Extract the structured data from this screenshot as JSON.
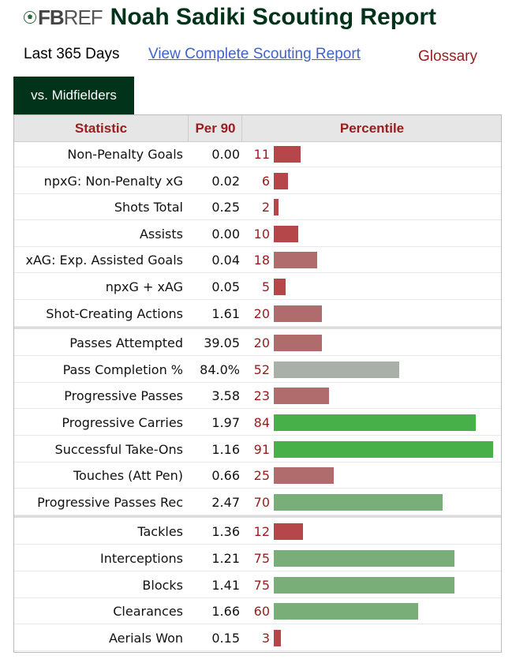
{
  "header": {
    "logo_fb": "FB",
    "logo_ref": "REF",
    "title": "Noah Sadiki Scouting Report"
  },
  "nav": {
    "period": "Last 365 Days",
    "complete_link": "View Complete Scouting Report",
    "glossary": "Glossary"
  },
  "tab": {
    "label": "vs. Midfielders"
  },
  "table": {
    "headers": {
      "statistic": "Statistic",
      "per90": "Per 90",
      "percentile": "Percentile"
    },
    "groups": [
      [
        {
          "stat": "Non-Penalty Goals",
          "per90": "0.00",
          "percentile": 11
        },
        {
          "stat": "npxG: Non-Penalty xG",
          "per90": "0.02",
          "percentile": 6
        },
        {
          "stat": "Shots Total",
          "per90": "0.25",
          "percentile": 2
        },
        {
          "stat": "Assists",
          "per90": "0.00",
          "percentile": 10
        },
        {
          "stat": "xAG: Exp. Assisted Goals",
          "per90": "0.04",
          "percentile": 18
        },
        {
          "stat": "npxG + xAG",
          "per90": "0.05",
          "percentile": 5
        },
        {
          "stat": "Shot-Creating Actions",
          "per90": "1.61",
          "percentile": 20
        }
      ],
      [
        {
          "stat": "Passes Attempted",
          "per90": "39.05",
          "percentile": 20
        },
        {
          "stat": "Pass Completion %",
          "per90": "84.0%",
          "percentile": 52
        },
        {
          "stat": "Progressive Passes",
          "per90": "3.58",
          "percentile": 23
        },
        {
          "stat": "Progressive Carries",
          "per90": "1.97",
          "percentile": 84
        },
        {
          "stat": "Successful Take-Ons",
          "per90": "1.16",
          "percentile": 91
        },
        {
          "stat": "Touches (Att Pen)",
          "per90": "0.66",
          "percentile": 25
        },
        {
          "stat": "Progressive Passes Rec",
          "per90": "2.47",
          "percentile": 70
        }
      ],
      [
        {
          "stat": "Tackles",
          "per90": "1.36",
          "percentile": 12
        },
        {
          "stat": "Interceptions",
          "per90": "1.21",
          "percentile": 75
        },
        {
          "stat": "Blocks",
          "per90": "1.41",
          "percentile": 75
        },
        {
          "stat": "Clearances",
          "per90": "1.66",
          "percentile": 60
        },
        {
          "stat": "Aerials Won",
          "per90": "0.15",
          "percentile": 3
        }
      ]
    ]
  },
  "colors": {
    "brand_dark_green": "#003319",
    "header_red": "#9a1c1c",
    "bar_low": "#b5474b",
    "bar_mid": "#a9b0a8",
    "bar_high": "#47b048"
  }
}
